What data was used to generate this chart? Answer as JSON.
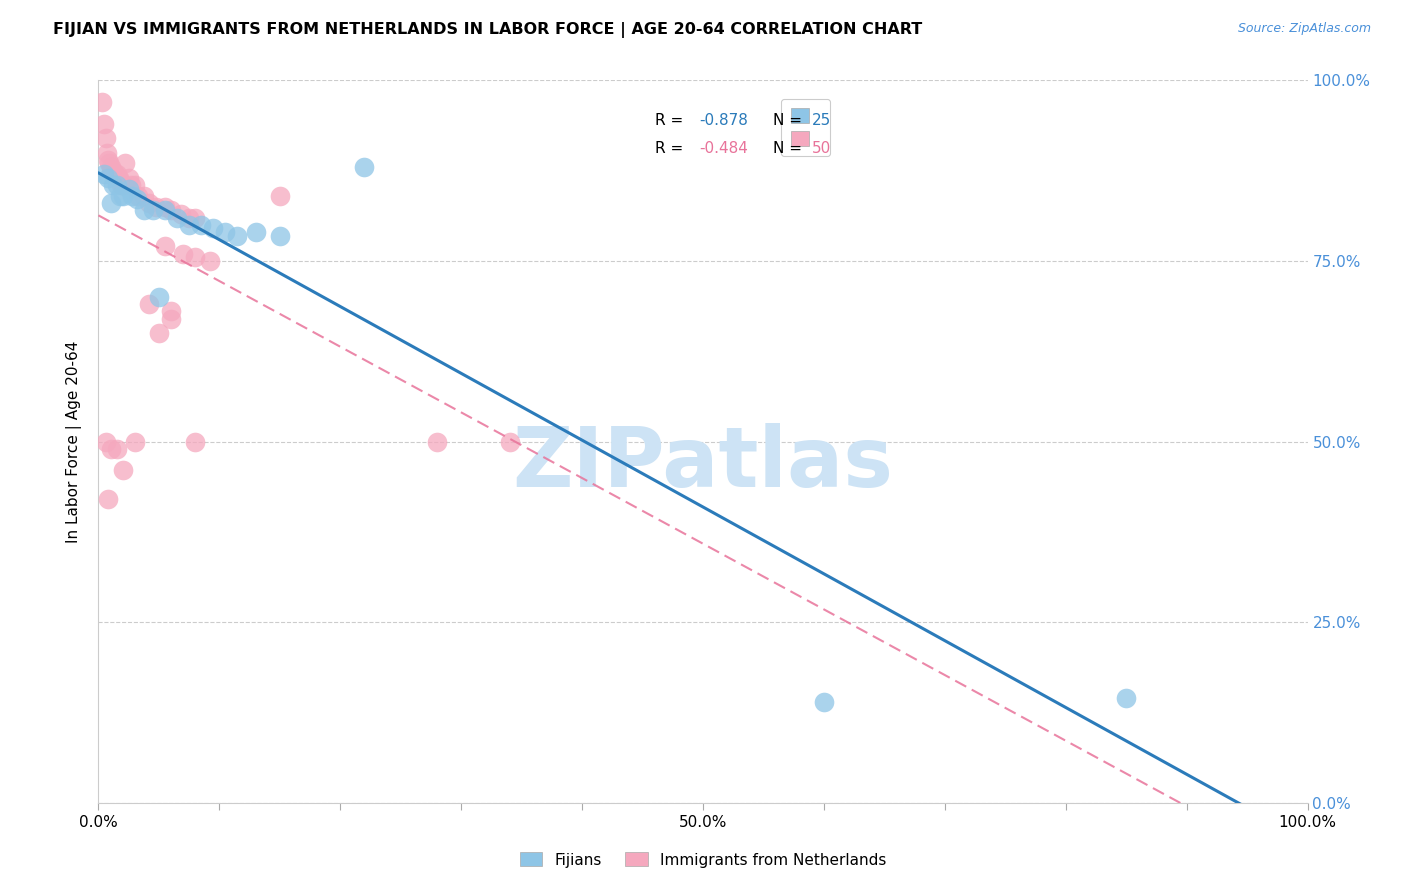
{
  "title": "FIJIAN VS IMMIGRANTS FROM NETHERLANDS IN LABOR FORCE | AGE 20-64 CORRELATION CHART",
  "source": "Source: ZipAtlas.com",
  "ylabel": "In Labor Force | Age 20-64",
  "xlim": [
    0,
    1.0
  ],
  "ylim": [
    0,
    1.0
  ],
  "xtick_pos": [
    0.0,
    0.1,
    0.2,
    0.3,
    0.4,
    0.5,
    0.6,
    0.7,
    0.8,
    0.9,
    1.0
  ],
  "xtick_labels": [
    "0.0%",
    "",
    "",
    "",
    "",
    "50.0%",
    "",
    "",
    "",
    "",
    "100.0%"
  ],
  "ytick_pos": [
    0.0,
    0.25,
    0.5,
    0.75,
    1.0
  ],
  "ytick_right_labels": [
    "0.0%",
    "25.0%",
    "50.0%",
    "75.0%",
    "100.0%"
  ],
  "legend_blue_r": "-0.878",
  "legend_blue_n": "25",
  "legend_pink_r": "-0.484",
  "legend_pink_n": "50",
  "legend_label_blue": "Fijians",
  "legend_label_pink": "Immigrants from Netherlands",
  "blue_scatter_color": "#8ec5e6",
  "pink_scatter_color": "#f5a8be",
  "blue_line_color": "#2b7bba",
  "pink_line_color": "#e8739a",
  "right_axis_color": "#4a90d9",
  "watermark": "ZIPatlas",
  "watermark_color": "#cde3f5",
  "blue_scatter_x": [
    0.005,
    0.008,
    0.01,
    0.012,
    0.015,
    0.018,
    0.02,
    0.025,
    0.028,
    0.032,
    0.038,
    0.045,
    0.055,
    0.065,
    0.075,
    0.085,
    0.095,
    0.105,
    0.115,
    0.13,
    0.15,
    0.05,
    0.6,
    0.85,
    0.22
  ],
  "blue_scatter_y": [
    0.87,
    0.865,
    0.83,
    0.855,
    0.855,
    0.84,
    0.84,
    0.85,
    0.84,
    0.835,
    0.82,
    0.82,
    0.82,
    0.81,
    0.8,
    0.8,
    0.795,
    0.79,
    0.785,
    0.79,
    0.785,
    0.7,
    0.14,
    0.145,
    0.88
  ],
  "pink_scatter_x": [
    0.003,
    0.005,
    0.006,
    0.007,
    0.008,
    0.009,
    0.01,
    0.01,
    0.011,
    0.012,
    0.013,
    0.014,
    0.015,
    0.016,
    0.017,
    0.018,
    0.019,
    0.02,
    0.021,
    0.022,
    0.025,
    0.027,
    0.03,
    0.033,
    0.038,
    0.042,
    0.048,
    0.055,
    0.06,
    0.068,
    0.075,
    0.08,
    0.055,
    0.07,
    0.08,
    0.092,
    0.042,
    0.05,
    0.06,
    0.08,
    0.03,
    0.02,
    0.015,
    0.01,
    0.28,
    0.34,
    0.15,
    0.06,
    0.006,
    0.008
  ],
  "pink_scatter_y": [
    0.97,
    0.94,
    0.92,
    0.9,
    0.89,
    0.885,
    0.88,
    0.875,
    0.875,
    0.875,
    0.87,
    0.87,
    0.87,
    0.865,
    0.865,
    0.86,
    0.855,
    0.855,
    0.855,
    0.885,
    0.865,
    0.855,
    0.855,
    0.84,
    0.84,
    0.83,
    0.825,
    0.825,
    0.82,
    0.815,
    0.81,
    0.81,
    0.77,
    0.76,
    0.755,
    0.75,
    0.69,
    0.65,
    0.67,
    0.5,
    0.5,
    0.46,
    0.49,
    0.49,
    0.5,
    0.5,
    0.84,
    0.68,
    0.5,
    0.42
  ]
}
